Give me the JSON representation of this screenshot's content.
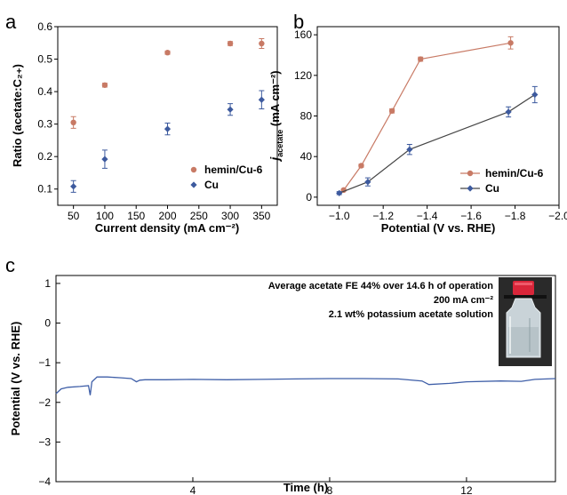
{
  "panels": {
    "a": "a",
    "b": "b",
    "c": "c"
  },
  "chart_data": [
    {
      "type": "scatter",
      "panel": "a",
      "xlabel": "Current density (mA cm⁻²)",
      "ylabel": "Ratio (acetate:C₂₊)",
      "xlim": [
        25,
        375
      ],
      "ylim": [
        0.05,
        0.6
      ],
      "xticks": [
        50,
        100,
        150,
        200,
        250,
        300,
        350
      ],
      "yticks": [
        0.1,
        0.2,
        0.3,
        0.4,
        0.5,
        0.6
      ],
      "legend_position": "bottom-right",
      "series": [
        {
          "name": "hemin/Cu-6",
          "color": "#c87a65",
          "marker": "circle",
          "x": [
            50,
            100,
            200,
            300,
            350
          ],
          "y": [
            0.305,
            0.42,
            0.52,
            0.548,
            0.548
          ],
          "err": [
            0.018,
            0.006,
            0.005,
            0.006,
            0.015
          ]
        },
        {
          "name": "Cu",
          "color": "#3d5a9e",
          "marker": "diamond",
          "x": [
            50,
            100,
            200,
            300,
            350
          ],
          "y": [
            0.108,
            0.192,
            0.285,
            0.345,
            0.375
          ],
          "err": [
            0.018,
            0.028,
            0.018,
            0.018,
            0.028
          ]
        }
      ]
    },
    {
      "type": "line",
      "panel": "b",
      "xlabel": "Potential (V vs. RHE)",
      "ylabel_main": "j",
      "ylabel_sub": "acetate",
      "ylabel_rest": " (mA cm⁻²)",
      "xlim": [
        -0.9,
        -2.0
      ],
      "ylim": [
        -8,
        168
      ],
      "xticks": [
        -1.0,
        -1.2,
        -1.4,
        -1.6,
        -1.8,
        -2.0
      ],
      "xtick_labels": [
        "−1.0",
        "−1.2",
        "−1.4",
        "−1.6",
        "−1.8",
        "−2.0"
      ],
      "yticks": [
        0,
        40,
        80,
        120,
        160
      ],
      "legend_position": "bottom-right",
      "series": [
        {
          "name": "hemin/Cu-6",
          "color": "#c87a65",
          "marker": "circle",
          "x": [
            -1.02,
            -1.1,
            -1.24,
            -1.37,
            -1.78
          ],
          "y": [
            7,
            31,
            85,
            136,
            152
          ],
          "err": [
            1,
            1.5,
            2,
            2,
            6
          ]
        },
        {
          "name": "Cu",
          "color": "#3d5a9e",
          "marker": "diamond",
          "x": [
            -1.0,
            -1.13,
            -1.32,
            -1.77,
            -1.89
          ],
          "y": [
            4,
            15,
            47,
            84,
            101
          ],
          "err": [
            1.5,
            4,
            5,
            5,
            8
          ]
        }
      ]
    },
    {
      "type": "line",
      "panel": "c",
      "xlabel": "Time (h)",
      "ylabel": "Potential (V vs. RHE)",
      "xlim": [
        0,
        14.6
      ],
      "ylim": [
        -4,
        1.2
      ],
      "xticks": [
        4,
        8,
        12
      ],
      "yticks": [
        -4,
        -3,
        -2,
        -1,
        0,
        1
      ],
      "ytick_labels": [
        "−4",
        "−3",
        "−2",
        "−1",
        "0",
        "1"
      ],
      "series": [
        {
          "name": "",
          "color": "#3f5fa8",
          "x": [
            0,
            0.15,
            0.35,
            0.7,
            0.95,
            1.0,
            1.05,
            1.2,
            1.5,
            1.9,
            2.2,
            2.35,
            2.45,
            2.6,
            3.2,
            4.0,
            5.0,
            6.0,
            7.0,
            8.0,
            9.0,
            10.0,
            10.7,
            10.9,
            11.5,
            12.0,
            13.0,
            13.6,
            14.0,
            14.6
          ],
          "y": [
            -1.78,
            -1.66,
            -1.62,
            -1.6,
            -1.58,
            -1.82,
            -1.48,
            -1.36,
            -1.36,
            -1.38,
            -1.4,
            -1.48,
            -1.44,
            -1.43,
            -1.43,
            -1.42,
            -1.43,
            -1.42,
            -1.41,
            -1.4,
            -1.4,
            -1.41,
            -1.46,
            -1.55,
            -1.52,
            -1.48,
            -1.46,
            -1.47,
            -1.42,
            -1.4
          ]
        }
      ],
      "annotations": [
        "Average acetate FE 44% over 14.6 h of operation",
        "200 mA cm⁻²",
        "2.1 wt% potassium acetate solution"
      ]
    }
  ]
}
